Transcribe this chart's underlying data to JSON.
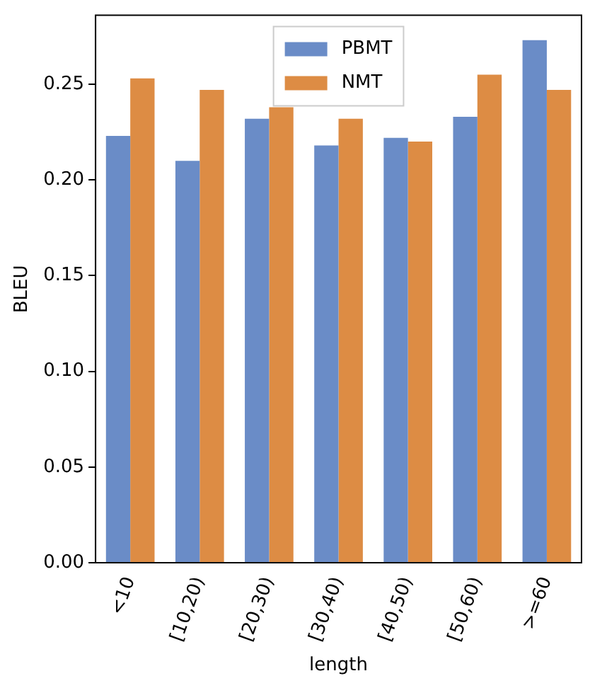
{
  "chart_data": {
    "type": "bar",
    "xlabel": "length",
    "ylabel": "BLEU",
    "categories": [
      "<10",
      "[10,20)",
      "[20,30)",
      "[30,40)",
      "[40,50)",
      "[50,60)",
      ">=60"
    ],
    "series": [
      {
        "name": "PBMT",
        "color": "#6a8cc7",
        "values": [
          0.223,
          0.21,
          0.232,
          0.218,
          0.222,
          0.233,
          0.273
        ]
      },
      {
        "name": "NMT",
        "color": "#dd8c44",
        "values": [
          0.253,
          0.247,
          0.238,
          0.232,
          0.22,
          0.255,
          0.247
        ]
      }
    ],
    "ylim": [
      0,
      0.286
    ],
    "yticks": [
      {
        "value": 0,
        "label": "0.00"
      },
      {
        "value": 0.05,
        "label": "0.05"
      },
      {
        "value": 0.1,
        "label": "0.10"
      },
      {
        "value": 0.15,
        "label": "0.15"
      },
      {
        "value": 0.2,
        "label": "0.20"
      },
      {
        "value": 0.25,
        "label": "0.25"
      }
    ],
    "legend": "top",
    "grid": false
  }
}
